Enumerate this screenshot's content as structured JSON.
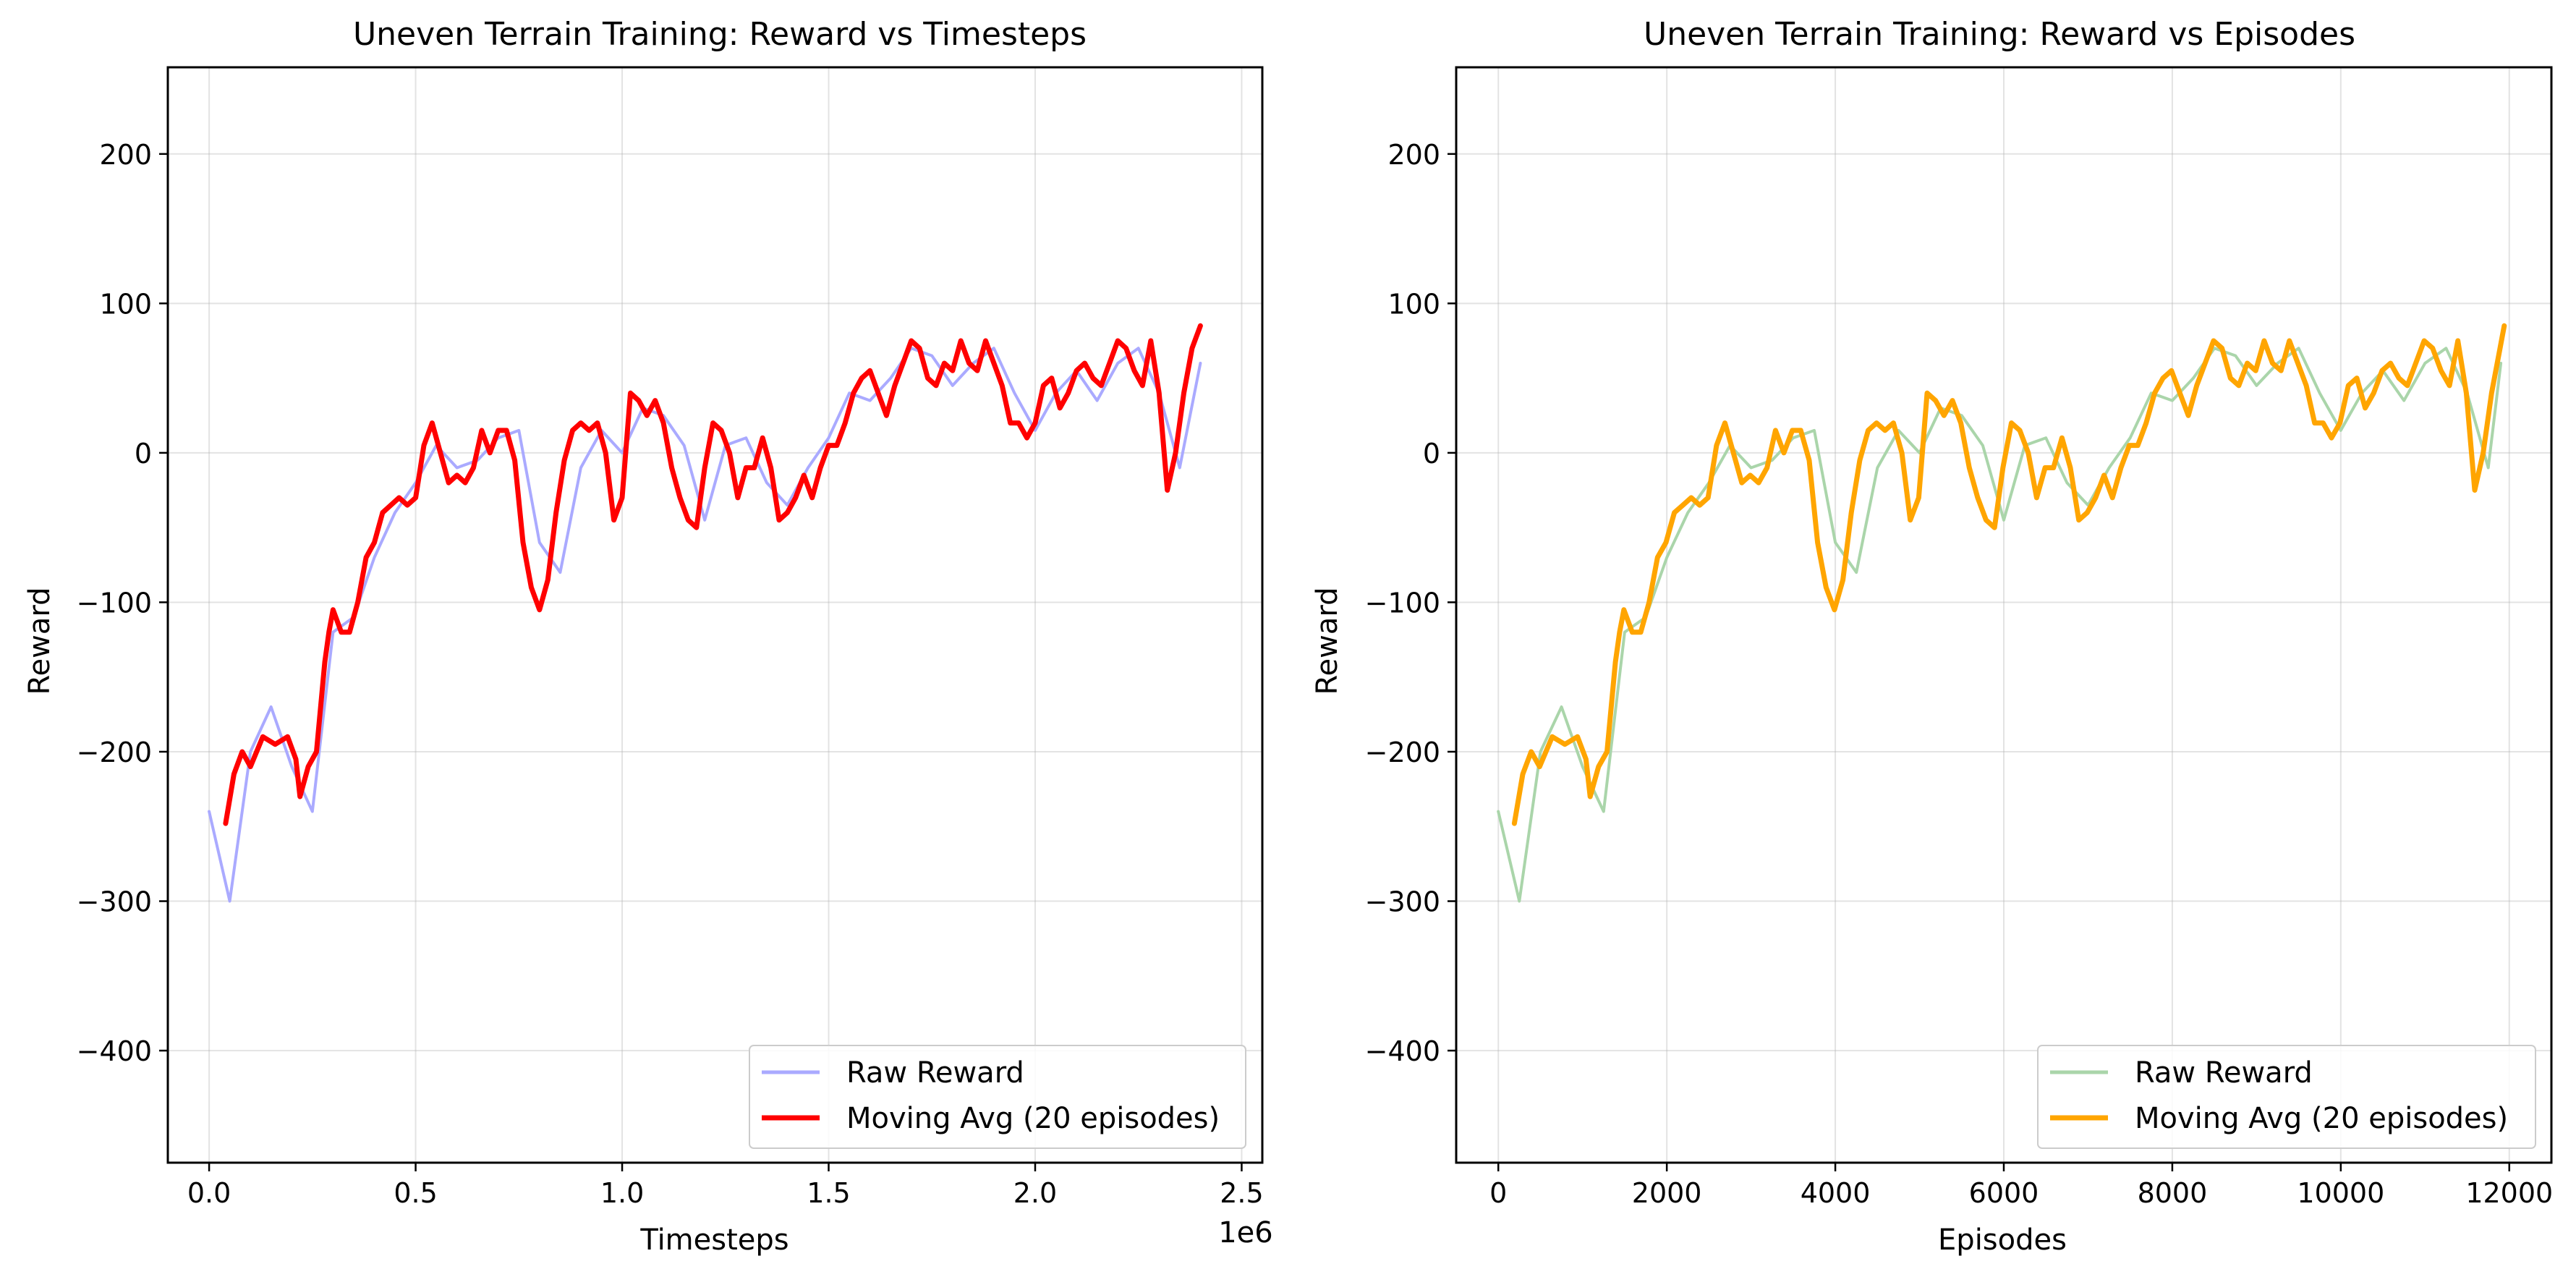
{
  "chart_data": [
    {
      "type": "line",
      "title": "Uneven Terrain Training: Reward vs Timesteps",
      "xlabel": "Timesteps",
      "ylabel": "Reward",
      "x_offset_label": "1e6",
      "xlim": [
        -0.1,
        2.55
      ],
      "ylim": [
        -475,
        258
      ],
      "x_ticks": [
        0.0,
        0.5,
        1.0,
        1.5,
        2.0,
        2.5
      ],
      "x_tick_labels": [
        "0.0",
        "0.5",
        "1.0",
        "1.5",
        "2.0",
        "2.5"
      ],
      "y_ticks": [
        -400,
        -300,
        -200,
        -100,
        0,
        100,
        200
      ],
      "y_tick_labels": [
        "−400",
        "−300",
        "−200",
        "−100",
        "0",
        "100",
        "200"
      ],
      "grid": true,
      "legend_position": "lower-right",
      "series": [
        {
          "name": "Raw Reward",
          "color": "#aaaaff",
          "kind": "raw",
          "x": [
            0.0,
            0.05,
            0.1,
            0.15,
            0.2,
            0.25,
            0.3,
            0.35,
            0.4,
            0.45,
            0.5,
            0.55,
            0.6,
            0.65,
            0.7,
            0.75,
            0.8,
            0.85,
            0.9,
            0.95,
            1.0,
            1.05,
            1.1,
            1.15,
            1.2,
            1.25,
            1.3,
            1.35,
            1.4,
            1.45,
            1.5,
            1.55,
            1.6,
            1.65,
            1.7,
            1.75,
            1.8,
            1.85,
            1.9,
            1.95,
            2.0,
            2.05,
            2.1,
            2.15,
            2.2,
            2.25,
            2.3,
            2.35,
            2.4
          ],
          "values": [
            -240,
            -300,
            -200,
            -170,
            -210,
            -240,
            -120,
            -110,
            -70,
            -40,
            -20,
            5,
            -10,
            -5,
            10,
            15,
            -60,
            -80,
            -10,
            15,
            0,
            30,
            25,
            5,
            -45,
            5,
            10,
            -20,
            -35,
            -10,
            10,
            40,
            35,
            50,
            70,
            65,
            45,
            60,
            70,
            40,
            15,
            40,
            55,
            35,
            60,
            70,
            40,
            -10,
            60
          ]
        },
        {
          "name": "Moving Avg (20 episodes)",
          "color": "#ff0000",
          "kind": "avg",
          "x": [
            0.04,
            0.06,
            0.08,
            0.1,
            0.13,
            0.16,
            0.19,
            0.21,
            0.22,
            0.24,
            0.26,
            0.28,
            0.29,
            0.3,
            0.32,
            0.34,
            0.36,
            0.38,
            0.4,
            0.42,
            0.44,
            0.46,
            0.48,
            0.5,
            0.52,
            0.54,
            0.56,
            0.58,
            0.6,
            0.62,
            0.64,
            0.66,
            0.68,
            0.7,
            0.72,
            0.74,
            0.76,
            0.78,
            0.8,
            0.82,
            0.84,
            0.86,
            0.88,
            0.9,
            0.92,
            0.94,
            0.96,
            0.98,
            1.0,
            1.02,
            1.04,
            1.06,
            1.08,
            1.1,
            1.12,
            1.14,
            1.16,
            1.18,
            1.2,
            1.22,
            1.24,
            1.26,
            1.28,
            1.3,
            1.32,
            1.34,
            1.36,
            1.38,
            1.4,
            1.42,
            1.44,
            1.46,
            1.48,
            1.5,
            1.52,
            1.54,
            1.56,
            1.58,
            1.6,
            1.62,
            1.64,
            1.66,
            1.68,
            1.7,
            1.72,
            1.74,
            1.76,
            1.78,
            1.8,
            1.82,
            1.84,
            1.86,
            1.88,
            1.9,
            1.92,
            1.94,
            1.96,
            1.98,
            2.0,
            2.02,
            2.04,
            2.06,
            2.08,
            2.1,
            2.12,
            2.14,
            2.16,
            2.18,
            2.2,
            2.22,
            2.24,
            2.26,
            2.28,
            2.3,
            2.32,
            2.34,
            2.36,
            2.38,
            2.4
          ],
          "values": [
            -248,
            -215,
            -200,
            -210,
            -190,
            -195,
            -190,
            -205,
            -230,
            -210,
            -200,
            -140,
            -120,
            -105,
            -120,
            -120,
            -100,
            -70,
            -60,
            -40,
            -35,
            -30,
            -35,
            -30,
            5,
            20,
            0,
            -20,
            -15,
            -20,
            -10,
            15,
            0,
            15,
            15,
            -5,
            -60,
            -90,
            -105,
            -85,
            -40,
            -5,
            15,
            20,
            15,
            20,
            0,
            -45,
            -30,
            40,
            35,
            25,
            35,
            20,
            -10,
            -30,
            -45,
            -50,
            -10,
            20,
            15,
            0,
            -30,
            -10,
            -10,
            10,
            -10,
            -45,
            -40,
            -30,
            -15,
            -30,
            -10,
            5,
            5,
            20,
            40,
            50,
            55,
            40,
            25,
            45,
            60,
            75,
            70,
            50,
            45,
            60,
            55,
            75,
            60,
            55,
            75,
            60,
            45,
            20,
            20,
            10,
            20,
            45,
            50,
            30,
            40,
            55,
            60,
            50,
            45,
            60,
            75,
            70,
            55,
            45,
            75,
            40,
            -25,
            0,
            40,
            70,
            85
          ]
        }
      ]
    },
    {
      "type": "line",
      "title": "Uneven Terrain Training: Reward vs Episodes",
      "xlabel": "Episodes",
      "ylabel": "Reward",
      "xlim": [
        -500,
        12500
      ],
      "ylim": [
        -475,
        258
      ],
      "x_ticks": [
        0,
        2000,
        4000,
        6000,
        8000,
        10000,
        12000
      ],
      "x_tick_labels": [
        "0",
        "2000",
        "4000",
        "6000",
        "8000",
        "10000",
        "12000"
      ],
      "y_ticks": [
        -400,
        -300,
        -200,
        -100,
        0,
        100,
        200
      ],
      "y_tick_labels": [
        "−400",
        "−300",
        "−200",
        "−100",
        "0",
        "100",
        "200"
      ],
      "grid": true,
      "legend_position": "lower-right",
      "series": [
        {
          "name": "Raw Reward",
          "color": "#aad5aa",
          "kind": "raw",
          "x": [
            0,
            250,
            500,
            750,
            1000,
            1250,
            1500,
            1750,
            2000,
            2250,
            2500,
            2750,
            3000,
            3250,
            3500,
            3750,
            4000,
            4250,
            4500,
            4750,
            5000,
            5250,
            5500,
            5750,
            6000,
            6250,
            6500,
            6750,
            7000,
            7250,
            7500,
            7750,
            8000,
            8250,
            8500,
            8750,
            9000,
            9250,
            9500,
            9750,
            10000,
            10250,
            10500,
            10750,
            11000,
            11250,
            11500,
            11750,
            11900
          ],
          "values": [
            -240,
            -300,
            -200,
            -170,
            -210,
            -240,
            -120,
            -110,
            -70,
            -40,
            -20,
            5,
            -10,
            -5,
            10,
            15,
            -60,
            -80,
            -10,
            15,
            0,
            30,
            25,
            5,
            -45,
            5,
            10,
            -20,
            -35,
            -10,
            10,
            40,
            35,
            50,
            70,
            65,
            45,
            60,
            70,
            40,
            15,
            40,
            55,
            35,
            60,
            70,
            40,
            -10,
            60
          ]
        },
        {
          "name": "Moving Avg (20 episodes)",
          "color": "#ffa500",
          "kind": "avg",
          "x": [
            190,
            290,
            390,
            490,
            640,
            790,
            940,
            1040,
            1090,
            1190,
            1290,
            1390,
            1440,
            1490,
            1590,
            1690,
            1790,
            1890,
            1990,
            2090,
            2190,
            2290,
            2390,
            2490,
            2590,
            2690,
            2790,
            2890,
            2990,
            3090,
            3190,
            3290,
            3390,
            3490,
            3590,
            3690,
            3790,
            3890,
            3990,
            4090,
            4190,
            4290,
            4390,
            4490,
            4590,
            4690,
            4790,
            4890,
            4990,
            5090,
            5190,
            5290,
            5390,
            5490,
            5590,
            5690,
            5790,
            5890,
            5990,
            6090,
            6190,
            6290,
            6390,
            6490,
            6590,
            6690,
            6790,
            6890,
            6990,
            7090,
            7190,
            7290,
            7390,
            7490,
            7590,
            7690,
            7790,
            7890,
            7990,
            8090,
            8190,
            8290,
            8390,
            8490,
            8590,
            8690,
            8790,
            8890,
            8990,
            9090,
            9190,
            9290,
            9390,
            9490,
            9590,
            9690,
            9790,
            9890,
            9990,
            10090,
            10190,
            10290,
            10390,
            10490,
            10590,
            10690,
            10790,
            10890,
            10990,
            11090,
            11190,
            11290,
            11390,
            11490,
            11590,
            11690,
            11790,
            11890,
            11940
          ],
          "values": [
            -248,
            -215,
            -200,
            -210,
            -190,
            -195,
            -190,
            -205,
            -230,
            -210,
            -200,
            -140,
            -120,
            -105,
            -120,
            -120,
            -100,
            -70,
            -60,
            -40,
            -35,
            -30,
            -35,
            -30,
            5,
            20,
            0,
            -20,
            -15,
            -20,
            -10,
            15,
            0,
            15,
            15,
            -5,
            -60,
            -90,
            -105,
            -85,
            -40,
            -5,
            15,
            20,
            15,
            20,
            0,
            -45,
            -30,
            40,
            35,
            25,
            35,
            20,
            -10,
            -30,
            -45,
            -50,
            -10,
            20,
            15,
            0,
            -30,
            -10,
            -10,
            10,
            -10,
            -45,
            -40,
            -30,
            -15,
            -30,
            -10,
            5,
            5,
            20,
            40,
            50,
            55,
            40,
            25,
            45,
            60,
            75,
            70,
            50,
            45,
            60,
            55,
            75,
            60,
            55,
            75,
            60,
            45,
            20,
            20,
            10,
            20,
            45,
            50,
            30,
            40,
            55,
            60,
            50,
            45,
            60,
            75,
            70,
            55,
            45,
            75,
            40,
            -25,
            0,
            40,
            70,
            85
          ]
        }
      ]
    }
  ]
}
